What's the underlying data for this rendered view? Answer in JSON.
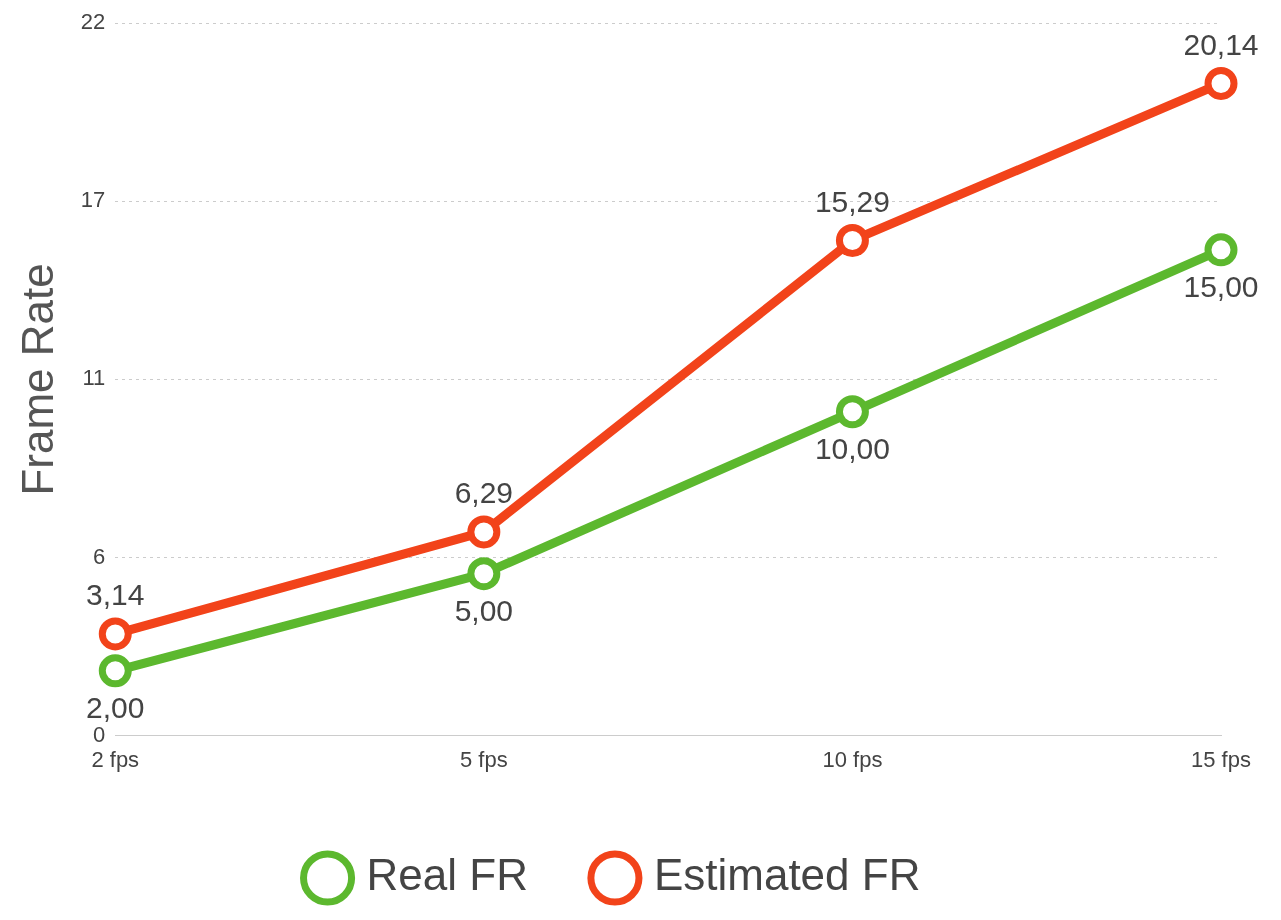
{
  "chart_data": {
    "type": "line",
    "ylabel": "Frame Rate",
    "categories": [
      "2 fps",
      "5 fps",
      "10 fps",
      "15 fps"
    ],
    "series": [
      {
        "name": "Real FR",
        "color": "#5cb82e",
        "values": [
          2.0,
          5.0,
          10.0,
          15.0
        ],
        "value_labels": [
          "2,00",
          "5,00",
          "10,00",
          "15,00"
        ]
      },
      {
        "name": "Estimated FR",
        "color": "#f2431a",
        "values": [
          3.14,
          6.29,
          15.29,
          20.14
        ],
        "value_labels": [
          "3,14",
          "6,29",
          "15,29",
          "20,14"
        ]
      }
    ],
    "ylim": [
      0,
      22
    ],
    "yticks": [
      0,
      {
        "value": 5.5,
        "label": "6"
      },
      11,
      {
        "value": 16.5,
        "label": "17"
      },
      22
    ],
    "grid": "y",
    "legend": "bottom",
    "marker": "circle",
    "line_style": "solid"
  }
}
